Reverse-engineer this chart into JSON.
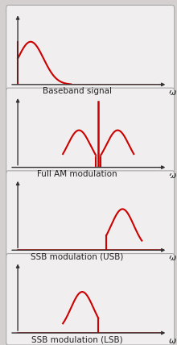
{
  "background_outer": "#d4d0d0",
  "background_panel": "#f0eeee",
  "line_color": "#cc0000",
  "axis_color": "#333333",
  "text_color": "#222222",
  "panels": [
    {
      "title": "Baseband signal",
      "type": "baseband"
    },
    {
      "title": "Full AM modulation",
      "type": "full_am"
    },
    {
      "title": "SSB modulation (USB)",
      "type": "usb"
    },
    {
      "title": "SSB modulation (LSB)",
      "type": "lsb"
    }
  ],
  "font_size_title": 7.5,
  "omega_font_size": 8
}
